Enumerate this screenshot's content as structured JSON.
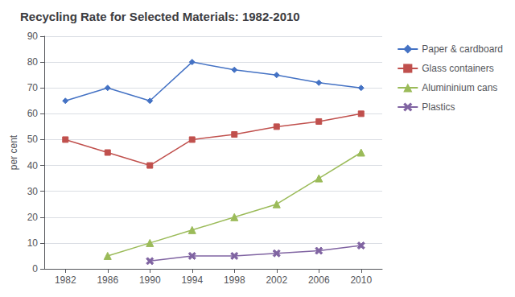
{
  "chart_data": {
    "type": "line",
    "title": "Recycling Rate for Selected Materials: 1982-2010",
    "ylabel": "per cent",
    "x": [
      1982,
      1986,
      1990,
      1994,
      1998,
      2002,
      2006,
      2010
    ],
    "series": [
      {
        "name": "Paper & cardboard",
        "color": "#4472C4",
        "marker": "diamond",
        "line_style": "solid",
        "values": [
          65,
          70,
          65,
          80,
          77,
          75,
          72,
          70
        ]
      },
      {
        "name": "Glass containers",
        "color": "#C0504D",
        "marker": "square",
        "line_style": "solid",
        "values": [
          50,
          45,
          40,
          50,
          52,
          55,
          57,
          60
        ]
      },
      {
        "name": "Alumininium cans",
        "color": "#9BBB59",
        "marker": "triangle",
        "line_style": "solid",
        "values": [
          null,
          5,
          10,
          15,
          20,
          25,
          35,
          45
        ]
      },
      {
        "name": "Plastics",
        "color": "#8064A2",
        "marker": "x",
        "line_style": "solid",
        "values": [
          null,
          null,
          3,
          5,
          5,
          6,
          7,
          9
        ]
      }
    ],
    "xlim": [
      1980,
      2012
    ],
    "xticks": [
      1982,
      1986,
      1990,
      1994,
      1998,
      2002,
      2006,
      2010
    ],
    "ylim": [
      0,
      90
    ],
    "yticks": [
      0,
      10,
      20,
      30,
      40,
      50,
      60,
      70,
      80,
      90
    ],
    "grid": true,
    "legend": "right"
  }
}
